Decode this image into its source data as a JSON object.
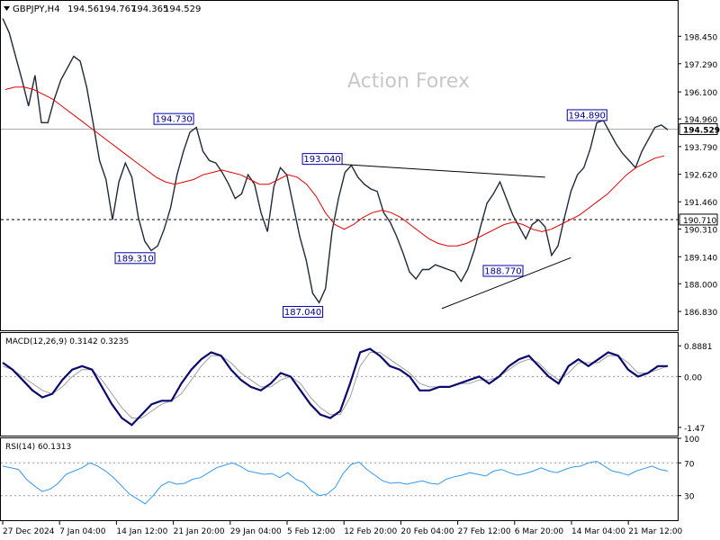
{
  "header": {
    "triangle_icon": "triangle-down-icon",
    "symbol": "GBPJPY,H4",
    "open": "194.561",
    "high": "194.767",
    "low": "194.365",
    "close": "194.529"
  },
  "watermark": "Action Forex",
  "colors": {
    "price": "#1f2a3a",
    "ma": "#e00000",
    "trendline": "#000000",
    "macd": "#0a0a6e",
    "signal": "#a0a0a0",
    "rsi": "#3399ee",
    "label_border": "#0000aa",
    "label_text": "#000080"
  },
  "chart_data": [
    {
      "type": "line",
      "name": "GBPJPY H4 price",
      "ylim": [
        186.3,
        199.6
      ],
      "y_ticks": [
        "198.450",
        "197.290",
        "196.100",
        "194.960",
        "193.790",
        "192.620",
        "191.460",
        "190.310",
        "189.140",
        "188.000",
        "186.830"
      ],
      "current_price": "194.529",
      "h_line_solid": "194.529",
      "h_line_dashed": "190.710",
      "price_series": [
        199.2,
        198.6,
        197.6,
        196.6,
        195.5,
        196.8,
        194.8,
        194.8,
        195.8,
        196.6,
        197.1,
        197.6,
        197.4,
        196.3,
        194.8,
        193.2,
        192.4,
        190.7,
        192.3,
        193.1,
        192.5,
        190.8,
        189.8,
        189.4,
        189.6,
        190.3,
        191.2,
        192.6,
        193.6,
        194.4,
        194.6,
        193.6,
        193.2,
        193.1,
        192.7,
        192.2,
        191.6,
        191.8,
        192.6,
        192.2,
        191.0,
        190.2,
        192.1,
        192.9,
        192.6,
        191.3,
        190.0,
        189.0,
        187.6,
        187.2,
        187.8,
        190.2,
        191.6,
        192.7,
        193.0,
        192.5,
        192.2,
        192.0,
        191.9,
        191.0,
        190.6,
        190.0,
        189.3,
        188.5,
        188.2,
        188.6,
        188.6,
        188.8,
        188.7,
        188.6,
        188.5,
        188.1,
        188.6,
        189.4,
        190.4,
        191.4,
        191.8,
        192.3,
        191.6,
        190.9,
        190.4,
        189.9,
        190.5,
        190.7,
        190.4,
        189.2,
        189.6,
        190.8,
        191.9,
        192.6,
        192.9,
        193.7,
        194.8,
        194.9,
        194.4,
        193.9,
        193.5,
        193.2,
        192.9,
        193.6,
        194.1,
        194.6,
        194.7,
        194.5
      ],
      "ma_series": [
        196.2,
        196.3,
        196.3,
        196.2,
        196.0,
        195.8,
        195.5,
        195.2,
        194.9,
        194.6,
        194.3,
        194.0,
        193.7,
        193.4,
        193.1,
        192.8,
        192.5,
        192.3,
        192.2,
        192.3,
        192.4,
        192.6,
        192.7,
        192.8,
        192.7,
        192.6,
        192.4,
        192.2,
        192.2,
        192.4,
        192.6,
        192.5,
        192.2,
        191.7,
        191.0,
        190.5,
        190.3,
        190.5,
        190.8,
        191.0,
        191.1,
        191.0,
        190.8,
        190.5,
        190.2,
        189.9,
        189.7,
        189.6,
        189.6,
        189.7,
        189.9,
        190.1,
        190.3,
        190.5,
        190.6,
        190.5,
        190.3,
        190.2,
        190.3,
        190.5,
        190.7,
        190.9,
        191.2,
        191.5,
        191.8,
        192.2,
        192.6,
        192.9,
        193.1,
        193.3,
        193.4
      ],
      "annotations": [
        {
          "text": "194.730",
          "x_index": 29,
          "price": 194.73,
          "anchor": "above-left"
        },
        {
          "text": "189.310",
          "x_index": 23,
          "price": 189.31,
          "anchor": "below-left"
        },
        {
          "text": "193.040",
          "x_index": 52,
          "price": 193.04,
          "anchor": "above-left"
        },
        {
          "text": "187.040",
          "x_index": 49,
          "price": 187.04,
          "anchor": "below-left"
        },
        {
          "text": "188.770",
          "x_index": 80,
          "price": 188.77,
          "anchor": "below-left"
        },
        {
          "text": "194.890",
          "x_index": 93,
          "price": 194.89,
          "anchor": "above-left"
        }
      ],
      "trendlines": [
        {
          "x1_index": 52,
          "y1": 193.05,
          "x2_index": 84,
          "y2": 192.5
        },
        {
          "x1_index": 68,
          "y1": 186.95,
          "x2_index": 88,
          "y2": 189.1
        }
      ]
    },
    {
      "type": "line",
      "name": "MACD(12,26,9)",
      "label": "MACD(12,26,9) 0.3142 0.3235",
      "ylim": [
        -1.55,
        1.05
      ],
      "y_ticks": [
        "0.8881",
        "0.00",
        "-1.47"
      ],
      "macd": [
        0.4,
        0.2,
        -0.1,
        -0.4,
        -0.6,
        -0.5,
        -0.1,
        0.2,
        0.3,
        0.2,
        -0.3,
        -0.8,
        -1.2,
        -1.4,
        -1.1,
        -0.8,
        -0.7,
        -0.7,
        -0.2,
        0.2,
        0.5,
        0.7,
        0.6,
        0.2,
        -0.1,
        -0.3,
        -0.4,
        -0.2,
        0.1,
        0.0,
        -0.4,
        -0.8,
        -1.1,
        -1.2,
        -1.0,
        -0.2,
        0.7,
        0.8,
        0.6,
        0.3,
        0.2,
        0.0,
        -0.4,
        -0.4,
        -0.3,
        -0.3,
        -0.2,
        -0.1,
        0.0,
        -0.2,
        0.0,
        0.3,
        0.5,
        0.6,
        0.3,
        0.0,
        -0.2,
        0.3,
        0.5,
        0.3,
        0.5,
        0.7,
        0.6,
        0.2,
        0.0,
        0.1,
        0.3,
        0.3
      ],
      "signal": [
        0.3,
        0.2,
        0.0,
        -0.2,
        -0.4,
        -0.5,
        -0.3,
        0.0,
        0.2,
        0.2,
        -0.1,
        -0.5,
        -0.9,
        -1.2,
        -1.2,
        -1.0,
        -0.8,
        -0.7,
        -0.5,
        -0.1,
        0.3,
        0.6,
        0.6,
        0.4,
        0.1,
        -0.1,
        -0.3,
        -0.3,
        -0.1,
        0.0,
        -0.2,
        -0.6,
        -0.9,
        -1.1,
        -1.1,
        -0.6,
        0.3,
        0.7,
        0.7,
        0.5,
        0.3,
        0.1,
        -0.2,
        -0.3,
        -0.3,
        -0.3,
        -0.2,
        -0.2,
        -0.1,
        -0.1,
        0.0,
        0.2,
        0.4,
        0.5,
        0.4,
        0.1,
        -0.1,
        0.1,
        0.4,
        0.4,
        0.4,
        0.6,
        0.6,
        0.4,
        0.1,
        0.1,
        0.2,
        0.3
      ]
    },
    {
      "type": "line",
      "name": "RSI(14)",
      "label": "RSI(14) 60.1313",
      "ylim": [
        0,
        100
      ],
      "y_ticks": [
        "100",
        "70",
        "30",
        "0"
      ],
      "levels": [
        70,
        30
      ],
      "values": [
        66,
        64,
        62,
        50,
        42,
        35,
        38,
        45,
        56,
        60,
        64,
        70,
        66,
        60,
        52,
        42,
        32,
        26,
        20,
        30,
        42,
        47,
        44,
        45,
        50,
        52,
        58,
        64,
        67,
        70,
        66,
        60,
        58,
        56,
        57,
        52,
        58,
        50,
        46,
        36,
        30,
        32,
        40,
        57,
        68,
        71,
        62,
        55,
        48,
        45,
        46,
        44,
        46,
        48,
        45,
        44,
        50,
        53,
        55,
        58,
        56,
        54,
        60,
        62,
        58,
        55,
        57,
        60,
        64,
        60,
        58,
        62,
        65,
        66,
        70,
        72,
        66,
        60,
        58,
        55,
        60,
        63,
        66,
        62,
        60
      ]
    }
  ],
  "x_axis": {
    "labels": [
      "27 Dec 2024",
      "7 Jan 04:00",
      "14 Jan 12:00",
      "21 Jan 20:00",
      "29 Jan 04:00",
      "5 Feb 12:00",
      "12 Feb 20:00",
      "20 Feb 04:00",
      "27 Feb 12:00",
      "6 Mar 20:00",
      "14 Mar 04:00",
      "21 Mar 12:00"
    ]
  }
}
